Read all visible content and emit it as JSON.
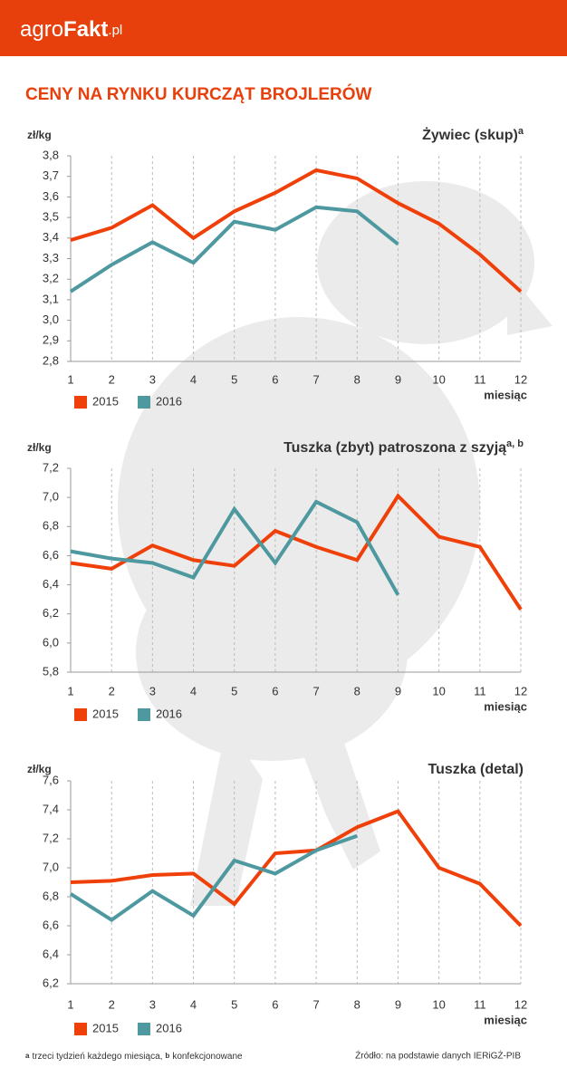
{
  "header": {
    "logo_a": "agro",
    "logo_b": "Fakt",
    "logo_c": ".pl"
  },
  "title": "CENY NA RYNKU KURCZĄT BROJLERÓW",
  "chart_data": [
    {
      "type": "line",
      "title": "Żywiec (skup)",
      "title_sup": "a",
      "ylabel": "zł/kg",
      "xlabel": "miesiąc",
      "categories": [
        "1",
        "2",
        "3",
        "4",
        "5",
        "6",
        "7",
        "8",
        "9",
        "10",
        "11",
        "12"
      ],
      "ylim": [
        2.8,
        3.8
      ],
      "yticks": [
        {
          "value": 2.8,
          "label": "2,8"
        },
        {
          "value": 2.9,
          "label": "2,9"
        },
        {
          "value": 3.0,
          "label": "3,0"
        },
        {
          "value": 3.1,
          "label": "3,1"
        },
        {
          "value": 3.2,
          "label": "3,2"
        },
        {
          "value": 3.3,
          "label": "3,3"
        },
        {
          "value": 3.4,
          "label": "3,4"
        },
        {
          "value": 3.5,
          "label": "3,5"
        },
        {
          "value": 3.6,
          "label": "3,6"
        },
        {
          "value": 3.7,
          "label": "3,7"
        },
        {
          "value": 3.8,
          "label": "3,8"
        }
      ],
      "series": [
        {
          "name": "2015",
          "color": "#f0400a",
          "values": [
            3.39,
            3.45,
            3.56,
            3.4,
            3.53,
            3.62,
            3.73,
            3.69,
            3.57,
            3.47,
            3.32,
            3.14
          ]
        },
        {
          "name": "2016",
          "color": "#4e98a0",
          "values": [
            3.14,
            3.27,
            3.38,
            3.28,
            3.48,
            3.44,
            3.55,
            3.53,
            3.37,
            null,
            null,
            null
          ]
        }
      ]
    },
    {
      "type": "line",
      "title": "Tuszka (zbyt) patroszona z szyją",
      "title_sup": "a, b",
      "ylabel": "zł/kg",
      "xlabel": "miesiąc",
      "categories": [
        "1",
        "2",
        "3",
        "4",
        "5",
        "6",
        "7",
        "8",
        "9",
        "10",
        "11",
        "12"
      ],
      "ylim": [
        5.8,
        7.2
      ],
      "yticks": [
        {
          "value": 5.8,
          "label": "5,8"
        },
        {
          "value": 6.0,
          "label": "6,0"
        },
        {
          "value": 6.2,
          "label": "6,2"
        },
        {
          "value": 6.4,
          "label": "6,4"
        },
        {
          "value": 6.6,
          "label": "6,6"
        },
        {
          "value": 6.8,
          "label": "6,8"
        },
        {
          "value": 7.0,
          "label": "7,0"
        },
        {
          "value": 7.2,
          "label": "7,2"
        }
      ],
      "series": [
        {
          "name": "2015",
          "color": "#f0400a",
          "values": [
            6.55,
            6.51,
            6.67,
            6.57,
            6.53,
            6.77,
            6.66,
            6.57,
            7.01,
            6.73,
            6.66,
            6.23
          ]
        },
        {
          "name": "2016",
          "color": "#4e98a0",
          "values": [
            6.63,
            6.58,
            6.55,
            6.45,
            6.92,
            6.55,
            6.97,
            6.83,
            6.33,
            null,
            null,
            null
          ]
        }
      ]
    },
    {
      "type": "line",
      "title": "Tuszka (detal)",
      "ylabel": "zł/kg",
      "xlabel": "miesiąc",
      "categories": [
        "1",
        "2",
        "3",
        "4",
        "5",
        "6",
        "7",
        "8",
        "9",
        "10",
        "11",
        "12"
      ],
      "ylim": [
        6.2,
        7.6
      ],
      "yticks": [
        {
          "value": 6.2,
          "label": "6,2"
        },
        {
          "value": 6.4,
          "label": "6,4"
        },
        {
          "value": 6.6,
          "label": "6,6"
        },
        {
          "value": 6.8,
          "label": "6,8"
        },
        {
          "value": 7.0,
          "label": "7,0"
        },
        {
          "value": 7.2,
          "label": "7,2"
        },
        {
          "value": 7.4,
          "label": "7,4"
        },
        {
          "value": 7.6,
          "label": "7,6"
        }
      ],
      "series": [
        {
          "name": "2015",
          "color": "#f0400a",
          "values": [
            6.9,
            6.91,
            6.95,
            6.96,
            6.75,
            7.1,
            7.12,
            7.28,
            7.39,
            7.0,
            6.89,
            6.6
          ]
        },
        {
          "name": "2016",
          "color": "#4e98a0",
          "values": [
            6.82,
            6.64,
            6.84,
            6.67,
            7.05,
            6.96,
            7.12,
            7.22,
            null,
            null,
            null,
            null
          ]
        }
      ]
    }
  ],
  "footnotes": [
    {
      "mark": "a",
      "text": "trzeci tydzień każdego miesiąca,"
    },
    {
      "mark": "b",
      "text": "konfekcjonowane"
    }
  ],
  "source": "Źródło: na podstawie danych IERiGŻ-PIB"
}
